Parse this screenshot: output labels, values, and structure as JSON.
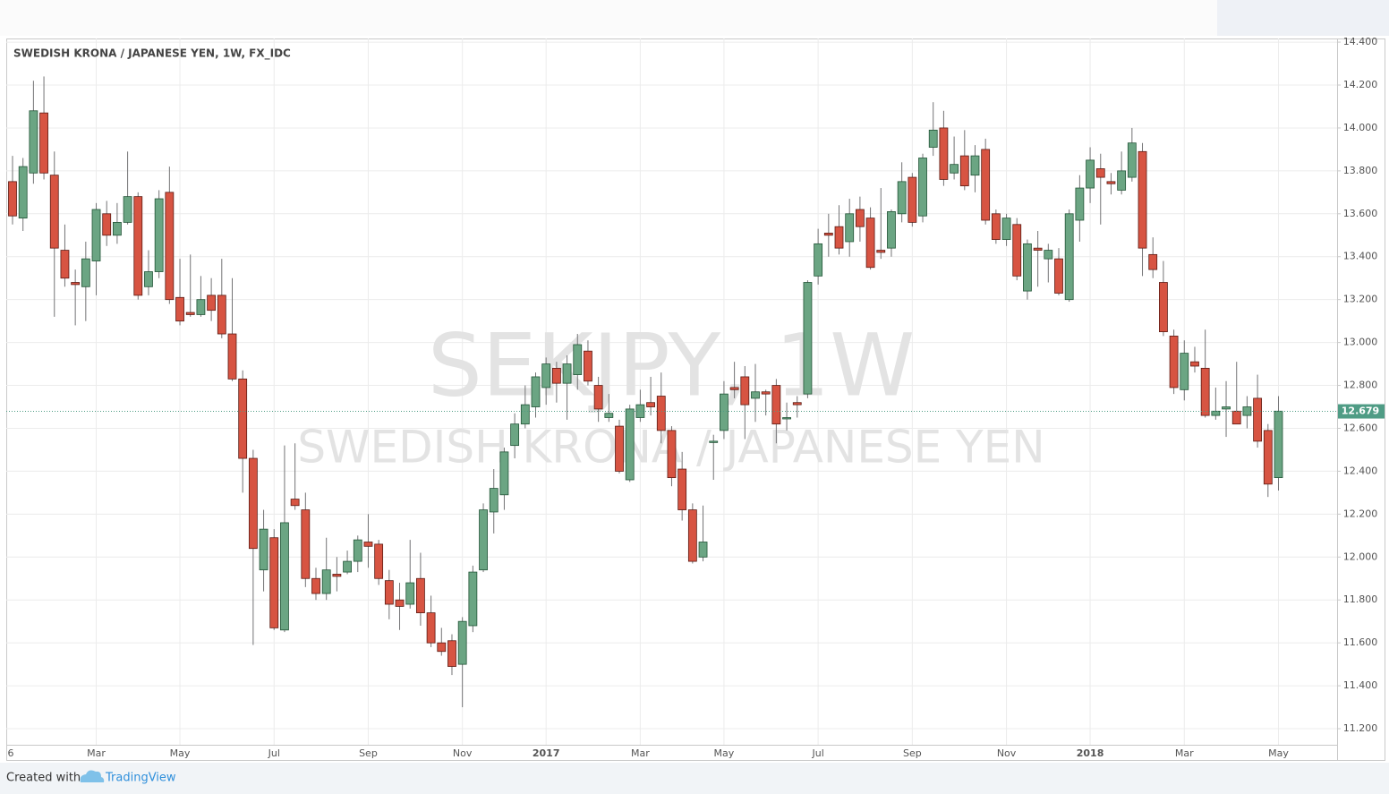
{
  "chart_data": {
    "type": "candlestick",
    "title": "SWEDISH KRONA / JAPANESE YEN, 1W, FX_IDC",
    "watermark": "SEKJPY, 1W",
    "watermark_subtitle": "SWEDISH KRONA / JAPANESE YEN",
    "categories": [
      "6",
      null,
      null,
      null,
      null,
      null,
      null,
      null,
      "Mar",
      null,
      null,
      null,
      null,
      null,
      null,
      null,
      "May",
      null,
      null,
      null,
      null,
      null,
      null,
      null,
      null,
      "Jul",
      null,
      null,
      null,
      null,
      null,
      null,
      null,
      null,
      "Sep",
      null,
      null,
      null,
      null,
      null,
      null,
      null,
      null,
      "Nov",
      null,
      null,
      null,
      null,
      null,
      null,
      null,
      "2017",
      null,
      null,
      null,
      null,
      null,
      null,
      null,
      null,
      "Mar",
      null,
      null,
      null,
      null,
      null,
      null,
      null,
      "May",
      null,
      null,
      null,
      null,
      null,
      null,
      null,
      null,
      "Jul",
      null,
      null,
      null,
      null,
      null,
      null,
      null,
      null,
      "Sep",
      null,
      null,
      null,
      null,
      null,
      null,
      null,
      null,
      "Nov",
      null,
      null,
      null,
      null,
      null,
      null,
      null,
      "2018",
      null,
      null,
      null,
      null,
      null,
      null,
      null,
      null,
      "Mar",
      null,
      null,
      null,
      null,
      null,
      null,
      null,
      null,
      "May"
    ],
    "open": [
      13.75,
      13.58,
      13.79,
      14.07,
      13.78,
      13.43,
      13.28,
      13.26,
      13.38,
      13.6,
      13.5,
      13.56,
      13.68,
      13.26,
      13.33,
      13.7,
      13.21,
      13.14,
      13.13,
      13.22,
      13.22,
      13.04,
      12.83,
      12.46,
      11.94,
      12.09,
      11.66,
      12.27,
      12.22,
      11.9,
      11.83,
      11.92,
      11.93,
      11.98,
      12.07,
      12.06,
      11.89,
      11.8,
      11.78,
      11.9,
      11.74,
      11.6,
      11.61,
      11.5,
      11.68,
      11.94,
      12.21,
      12.29,
      12.52,
      12.62,
      12.7,
      12.79,
      12.88,
      12.81,
      12.85,
      12.96,
      12.8,
      12.65,
      12.61,
      12.36,
      12.65,
      12.72,
      12.75,
      12.59,
      12.41,
      12.22,
      12.0,
      12.54,
      12.59,
      12.79,
      12.84,
      12.74,
      12.77,
      12.8,
      12.65,
      12.72,
      12.76,
      13.31,
      13.51,
      13.54,
      13.47,
      13.62,
      13.58,
      13.43,
      13.44,
      13.6,
      13.77,
      13.59,
      13.91,
      14.0,
      13.79,
      13.87,
      13.78,
      13.9,
      13.6,
      13.48,
      13.55,
      13.24,
      13.44,
      13.39,
      13.39,
      13.2,
      13.57,
      13.72,
      13.81,
      13.75,
      13.71,
      13.77,
      13.89,
      13.41,
      13.28,
      13.03,
      12.78,
      12.91,
      12.88,
      12.66,
      12.69,
      12.68,
      12.66,
      12.74,
      12.59,
      12.37
    ],
    "high": [
      13.87,
      13.86,
      14.22,
      14.24,
      13.89,
      13.55,
      13.34,
      13.47,
      13.65,
      13.66,
      13.65,
      13.89,
      13.7,
      13.43,
      13.71,
      13.82,
      13.39,
      13.41,
      13.31,
      13.3,
      13.39,
      13.3,
      12.87,
      12.5,
      12.22,
      12.13,
      12.52,
      12.53,
      12.3,
      11.95,
      12.09,
      12.0,
      12.03,
      12.1,
      12.2,
      12.08,
      11.94,
      11.88,
      12.08,
      12.02,
      11.82,
      11.67,
      11.64,
      11.72,
      11.96,
      12.25,
      12.41,
      12.51,
      12.67,
      12.8,
      12.86,
      12.93,
      12.91,
      12.94,
      13.04,
      13.01,
      12.84,
      12.76,
      12.64,
      12.71,
      12.78,
      12.84,
      12.86,
      12.61,
      12.49,
      12.25,
      12.24,
      12.57,
      12.82,
      12.91,
      12.89,
      12.9,
      12.78,
      12.83,
      12.72,
      12.75,
      13.29,
      13.53,
      13.6,
      13.64,
      13.67,
      13.68,
      13.63,
      13.72,
      13.62,
      13.84,
      13.79,
      13.88,
      14.12,
      14.08,
      13.96,
      13.99,
      13.92,
      13.95,
      13.62,
      13.6,
      13.58,
      13.48,
      13.52,
      13.46,
      13.44,
      13.62,
      13.78,
      13.91,
      13.88,
      13.79,
      13.89,
      14.0,
      13.93,
      13.49,
      13.38,
      13.06,
      13.01,
      12.98,
      13.06,
      12.79,
      12.82,
      12.91,
      12.75,
      12.85,
      12.62,
      12.75
    ],
    "low": [
      13.55,
      13.52,
      13.74,
      13.76,
      13.12,
      13.26,
      13.08,
      13.1,
      13.22,
      13.45,
      13.46,
      13.55,
      13.2,
      13.22,
      13.3,
      13.18,
      13.08,
      13.12,
      13.12,
      13.1,
      13.02,
      12.82,
      12.3,
      11.59,
      11.84,
      11.66,
      11.65,
      12.22,
      11.86,
      11.8,
      11.8,
      11.84,
      11.92,
      11.93,
      11.95,
      11.87,
      11.71,
      11.66,
      11.76,
      11.68,
      11.58,
      11.54,
      11.45,
      11.3,
      11.65,
      11.93,
      12.11,
      12.22,
      12.46,
      12.6,
      12.65,
      12.71,
      12.72,
      12.64,
      12.78,
      12.8,
      12.63,
      12.63,
      12.39,
      12.35,
      12.63,
      12.66,
      12.53,
      12.33,
      12.17,
      11.97,
      11.98,
      12.36,
      12.55,
      12.74,
      12.55,
      12.63,
      12.66,
      12.53,
      12.59,
      12.65,
      12.74,
      13.27,
      13.4,
      13.41,
      13.4,
      13.47,
      13.34,
      13.39,
      13.4,
      13.56,
      13.54,
      13.56,
      13.87,
      13.73,
      13.76,
      13.71,
      13.7,
      13.55,
      13.46,
      13.45,
      13.29,
      13.2,
      13.26,
      13.28,
      13.22,
      13.19,
      13.47,
      13.65,
      13.55,
      13.69,
      13.69,
      13.75,
      13.31,
      13.3,
      13.03,
      12.76,
      12.73,
      12.86,
      12.65,
      12.64,
      12.56,
      12.62,
      12.6,
      12.51,
      12.28,
      12.31
    ],
    "close": [
      13.59,
      13.82,
      14.08,
      13.79,
      13.44,
      13.3,
      13.27,
      13.39,
      13.62,
      13.5,
      13.56,
      13.68,
      13.22,
      13.33,
      13.67,
      13.2,
      13.1,
      13.13,
      13.2,
      13.15,
      13.04,
      12.83,
      12.46,
      12.04,
      12.13,
      11.67,
      12.16,
      12.24,
      11.9,
      11.83,
      11.94,
      11.91,
      11.98,
      12.08,
      12.05,
      11.9,
      11.78,
      11.77,
      11.88,
      11.74,
      11.6,
      11.56,
      11.49,
      11.7,
      11.93,
      12.22,
      12.32,
      12.49,
      12.62,
      12.71,
      12.84,
      12.9,
      12.81,
      12.9,
      12.99,
      12.82,
      12.69,
      12.67,
      12.4,
      12.69,
      12.71,
      12.7,
      12.59,
      12.37,
      12.22,
      11.98,
      12.07,
      12.54,
      12.76,
      12.78,
      12.71,
      12.77,
      12.76,
      12.62,
      12.65,
      12.71,
      13.28,
      13.46,
      13.5,
      13.44,
      13.6,
      13.54,
      13.35,
      13.42,
      13.61,
      13.75,
      13.56,
      13.86,
      13.99,
      13.76,
      13.83,
      13.73,
      13.87,
      13.57,
      13.48,
      13.58,
      13.31,
      13.46,
      13.43,
      13.43,
      13.23,
      13.6,
      13.72,
      13.85,
      13.77,
      13.74,
      13.8,
      13.93,
      13.44,
      13.34,
      13.05,
      12.79,
      12.95,
      12.89,
      12.66,
      12.68,
      12.7,
      12.62,
      12.7,
      12.54,
      12.34,
      12.68
    ],
    "up_color": "#6ba583",
    "down_color": "#d75442",
    "up_border": "#225437",
    "down_border": "#5b1a13",
    "wick_color": "#737375",
    "last_price": 12.679,
    "last_price_color": "#4f9c85",
    "ylim": [
      11.125,
      14.417
    ],
    "yticks": [
      {
        "value": 11.2,
        "label": "11.200"
      },
      {
        "value": 11.4,
        "label": "11.400"
      },
      {
        "value": 11.6,
        "label": "11.600"
      },
      {
        "value": 11.8,
        "label": "11.800"
      },
      {
        "value": 12.0,
        "label": "12.000"
      },
      {
        "value": 12.2,
        "label": "12.200"
      },
      {
        "value": 12.4,
        "label": "12.400"
      },
      {
        "value": 12.6,
        "label": "12.600"
      },
      {
        "value": 12.8,
        "label": "12.800"
      },
      {
        "value": 13.0,
        "label": "13.000"
      },
      {
        "value": 13.2,
        "label": "13.200"
      },
      {
        "value": 13.4,
        "label": "13.400"
      },
      {
        "value": 13.6,
        "label": "13.600"
      },
      {
        "value": 13.8,
        "label": "13.800"
      },
      {
        "value": 14.0,
        "label": "14.000"
      },
      {
        "value": 14.2,
        "label": "14.200"
      },
      {
        "value": 14.4,
        "label": "14.400"
      }
    ],
    "grid": true
  },
  "footer": {
    "created_with": "Created with",
    "brand": "TradingView"
  }
}
